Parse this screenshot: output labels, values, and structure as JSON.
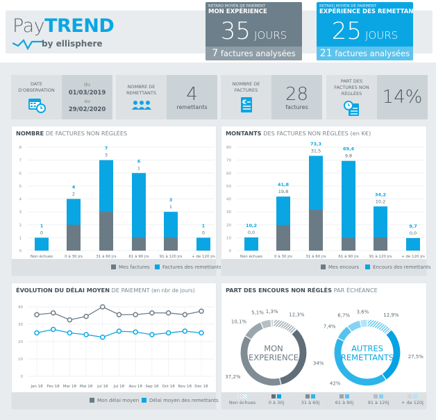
{
  "logo": {
    "pay": "Pay",
    "trend": "TREND",
    "by": "by ellisphere"
  },
  "cards": [
    {
      "subtitle": "RETARD MOYEN DE PAIEMENT",
      "title": "MON EXPÉRIENCE",
      "value": "35",
      "unit": "JOURS",
      "footer_count": "7",
      "footer_text": "factures analysées",
      "color": "#6c7f8b",
      "footer_color": "#8e9ca5"
    },
    {
      "subtitle": "RETARD MOYEN DE PAIEMENT",
      "title": "EXPÉRIENCE DES REMETTANTS",
      "value": "25",
      "unit": "JOURS",
      "footer_count": "21",
      "footer_text": "factures analysées",
      "color": "#0aa6e4",
      "footer_color": "#5cc3ec"
    }
  ],
  "stats": {
    "date": {
      "label": "DATE D'OBSERVATION",
      "from_label": "du",
      "from": "01/03/2019",
      "to_label": "au",
      "to": "29/02/2020",
      "icon": "calendar-clock-icon"
    },
    "remettants": {
      "label": "NOMBRE DE REMETTANTS",
      "value": "4",
      "unit": "remettants",
      "icon": "users-icon"
    },
    "factures": {
      "label": "NOMBRE DE FACTURES",
      "value": "28",
      "unit": "factures",
      "icon": "euro-invoice-icon"
    },
    "part": {
      "label": "PART DES FACTURES NON RÉGLÉES",
      "value": "14%",
      "icon": "clock-invoice-icon"
    }
  },
  "colors": {
    "grey": "#6b7b85",
    "blue": "#0aa6e4"
  },
  "chart_data": [
    {
      "type": "bar",
      "stacked": true,
      "title_bold": "NOMBRE",
      "title_rest": " DE FACTURES NON RÉGLÉES",
      "categories": [
        "Non échues",
        "0 à 30 jrs",
        "31 à 60 jrs",
        "61 à 90 jrs",
        "91 à 120 jrs",
        "+ de 120 jrs"
      ],
      "ylim": [
        0,
        8
      ],
      "yticks": [
        0,
        1,
        2,
        3,
        4,
        5,
        6,
        7,
        8
      ],
      "series": [
        {
          "name": "Mes factures",
          "values": [
            0,
            2,
            3,
            1,
            1,
            0
          ]
        },
        {
          "name": "Factures des remettants",
          "totals": [
            1,
            4,
            7,
            6,
            3,
            1
          ]
        }
      ],
      "labels_mine": [
        "0",
        "2",
        "3",
        "1",
        "1",
        "0"
      ],
      "labels_total": [
        "1",
        "4",
        "7",
        "6",
        "3",
        "1"
      ],
      "grid": true,
      "legend": "bottom-right"
    },
    {
      "type": "bar",
      "stacked": true,
      "title_bold": "MONTANTS",
      "title_rest": " DES FACTURES NON RÉGLÉES (en K€)",
      "categories": [
        "Non échues",
        "0 à 30 jrs",
        "31 à 60 jrs",
        "61 à 90 jrs",
        "91 à 120 jrs",
        "+ de 120 jrs"
      ],
      "ylim": [
        0,
        80
      ],
      "yticks": [
        0,
        10,
        20,
        30,
        40,
        50,
        60,
        70,
        80
      ],
      "series": [
        {
          "name": "Mes encours",
          "values": [
            0,
            19.8,
            31.5,
            9.8,
            10.2,
            0
          ]
        },
        {
          "name": "Encours des remettants",
          "totals": [
            10.2,
            41.8,
            73.3,
            69.4,
            34.2,
            9.7
          ]
        }
      ],
      "labels_mine": [
        "0,0",
        "19,8",
        "31,5",
        "9,8",
        "10,2",
        "0,0"
      ],
      "labels_total": [
        "10,2",
        "41,8",
        "73,3",
        "69,4",
        "34,2",
        "9,7"
      ],
      "grid": true,
      "legend": "bottom-right"
    },
    {
      "type": "line",
      "title_bold": "ÉVOLUTION DU DÉLAI MOYEN",
      "title_rest": " DE PAIEMENT",
      "title_note": " (en nbr de jours)",
      "categories": [
        "Jan 18",
        "Fev 18",
        "Mar 18",
        "Mai 18",
        "Jul 18",
        "Jul 18",
        "Aou 18",
        "Sep 18",
        "Oct 18",
        "Nov 18",
        "Dec 18"
      ],
      "ylim": [
        0,
        40
      ],
      "yticks": [
        0,
        10,
        20,
        30,
        40
      ],
      "series": [
        {
          "name": "Mon délai moyen",
          "values": [
            35.5,
            36.5,
            32.5,
            34.5,
            40,
            35.5,
            35.5,
            36.5,
            36.5,
            35.5,
            37.5
          ]
        },
        {
          "name": "Délai moyen des remettants",
          "values": [
            25,
            27,
            25,
            24,
            22.5,
            26,
            25.5,
            24,
            25,
            26,
            25
          ]
        }
      ],
      "grid": true,
      "legend": "bottom-right"
    },
    {
      "type": "pie",
      "donut": true,
      "title_bold": "PART DES ENCOURS NON RÉGLÉS",
      "title_rest": " PAR ÉCHÉANCE",
      "categories": [
        "Non échues",
        "0 à 30j",
        "31 à 60j",
        "61 à 90j",
        "91 à 120j",
        "+ de 120j"
      ],
      "series": [
        {
          "name": "MON EXPERIENCE",
          "name_lines": [
            "MON",
            "EXPERIENCE"
          ],
          "values": [
            12.3,
            34,
            37.2,
            10.1,
            5.1,
            1.3
          ],
          "labels": [
            "12,3%",
            "34%",
            "37,2%",
            "10,1%",
            "5,1%",
            "1,3%"
          ],
          "colors": [
            "#9aa6ad",
            "#5f6e78",
            "#7f8c94",
            "#9aa6ad",
            "#b6bfc4",
            "#d1d7da"
          ]
        },
        {
          "name": "AUTRES REMETTANTS",
          "name_lines": [
            "AUTRES",
            "REMETTANTS"
          ],
          "values": [
            12.9,
            27.5,
            42,
            7.4,
            6.7,
            3.6
          ],
          "labels": [
            "12,9%",
            "27,5%",
            "42%",
            "7,4%",
            "6,7%",
            "3,6%"
          ],
          "colors": [
            "#7fd0f1",
            "#05a3e3",
            "#2db5ea",
            "#55c3ee",
            "#84d3f3",
            "#b3e4f8"
          ]
        }
      ],
      "legend": "bottom"
    }
  ]
}
